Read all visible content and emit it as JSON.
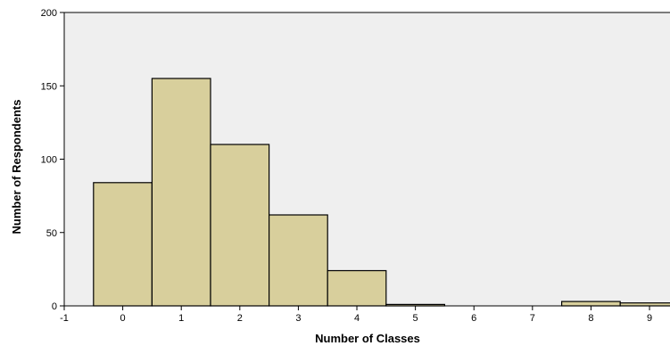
{
  "chart_data": {
    "type": "bar",
    "title": "",
    "xlabel": "Number of Classes",
    "ylabel": "Number of Respondents",
    "xlim": [
      -1,
      9.35
    ],
    "ylim": [
      0,
      200
    ],
    "x_ticks": [
      "-1",
      "0",
      "1",
      "2",
      "3",
      "4",
      "5",
      "6",
      "7",
      "8",
      "9"
    ],
    "y_ticks": [
      "0",
      "50",
      "100",
      "150",
      "200"
    ],
    "categories": [
      "0",
      "1",
      "2",
      "3",
      "4",
      "5",
      "6",
      "7",
      "8",
      "9"
    ],
    "values": [
      84,
      155,
      110,
      62,
      24,
      1,
      0,
      0,
      3,
      2
    ],
    "grid": false,
    "colors": {
      "bar_fill": "#d8cf9c",
      "bar_stroke": "#000000",
      "plot_background": "#efefef",
      "axis": "#000000"
    }
  }
}
